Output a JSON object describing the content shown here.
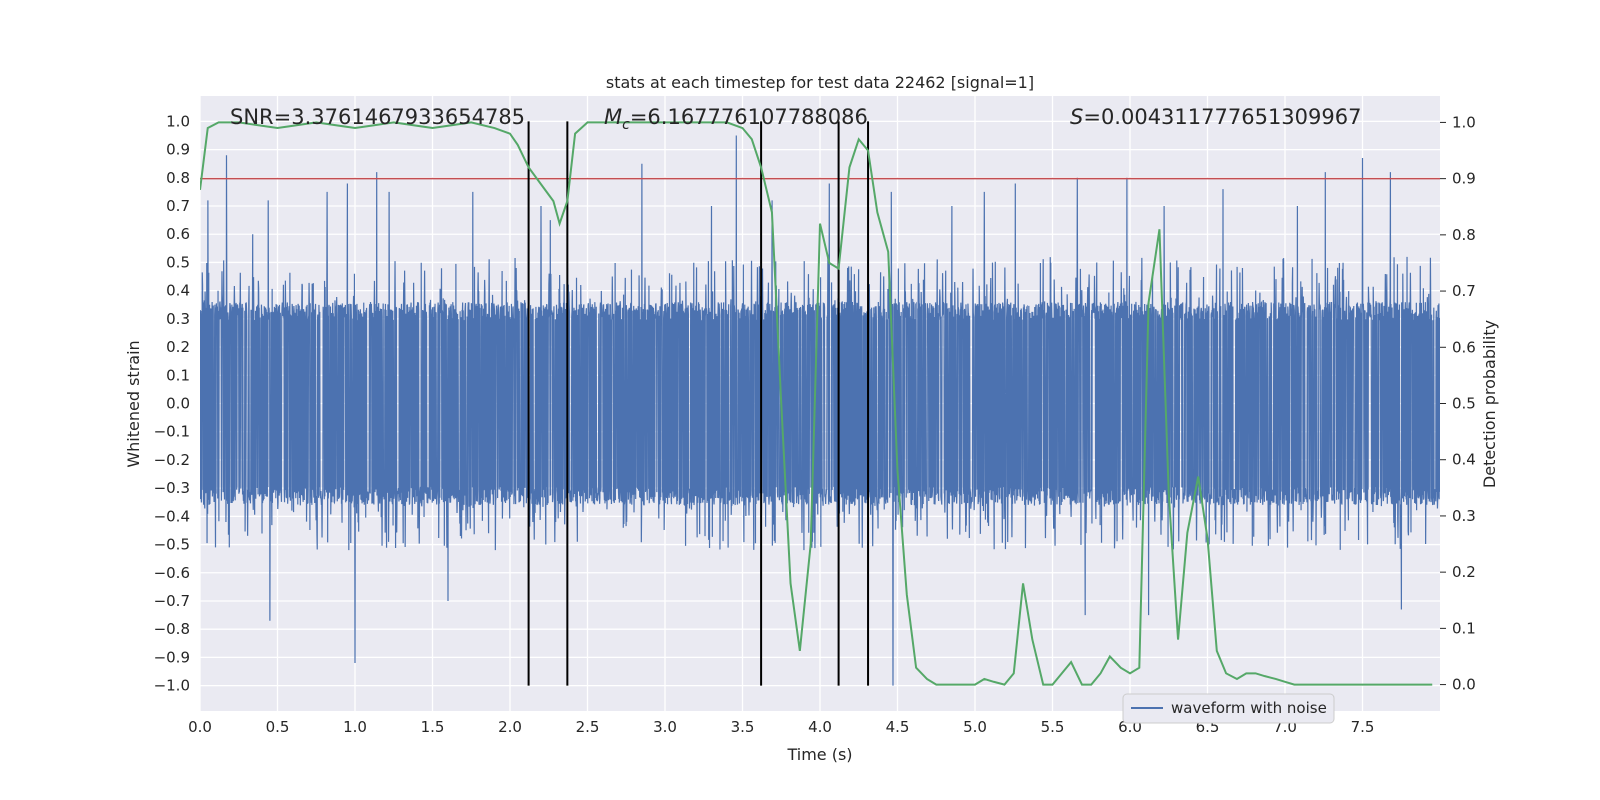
{
  "chart_data": {
    "type": "line",
    "title": "stats at each timestep for test data 22462 [signal=1]",
    "xlabel": "Time (s)",
    "ylabel": "Whitened strain",
    "y2label": "Detection probability",
    "xlim": [
      0.0,
      8.0
    ],
    "ylim": [
      -1.09,
      1.09
    ],
    "y2lim": [
      -0.047,
      1.047
    ],
    "xticks": [
      "0.0",
      "0.5",
      "1.0",
      "1.5",
      "2.0",
      "2.5",
      "3.0",
      "3.5",
      "4.0",
      "4.5",
      "5.0",
      "5.5",
      "6.0",
      "6.5",
      "7.0",
      "7.5"
    ],
    "yticks": [
      "1.0",
      "0.9",
      "0.8",
      "0.7",
      "0.6",
      "0.5",
      "0.4",
      "0.3",
      "0.2",
      "0.1",
      "0.0",
      "−0.1",
      "−0.2",
      "−0.3",
      "−0.4",
      "−0.5",
      "−0.6",
      "−0.7",
      "−0.8",
      "−0.9",
      "−1.0"
    ],
    "y2ticks": [
      "1.0",
      "0.9",
      "0.8",
      "0.7",
      "0.6",
      "0.5",
      "0.4",
      "0.3",
      "0.2",
      "0.1",
      "0.0"
    ],
    "annotations": {
      "snr": "SNR=3.3761467933654785",
      "mc_symbol": "M",
      "mc_sub": "c",
      "mc_value": "=6.167776107788086",
      "s_symbol": "S",
      "s_value": "=0.004311777651309967"
    },
    "legend": {
      "label": "waveform with noise",
      "position": "lower-right"
    },
    "threshold": {
      "axis": "right",
      "value": 0.9,
      "color": "#c44e52"
    },
    "vertical_lines": {
      "x": [
        2.12,
        2.37,
        3.62,
        4.12,
        4.31
      ],
      "from": -1.0,
      "to": 1.0
    },
    "waveform": {
      "name": "waveform with noise",
      "color": "#4c72b0",
      "duration": 8.0,
      "body_amplitude": 0.36,
      "typical_peak": 0.52,
      "spikes": [
        {
          "t": 0.05,
          "v": 0.72
        },
        {
          "t": 0.17,
          "v": 0.88
        },
        {
          "t": 0.34,
          "v": 0.6
        },
        {
          "t": 0.44,
          "v": 0.72
        },
        {
          "t": 0.45,
          "v": -0.77
        },
        {
          "t": 0.82,
          "v": 0.75
        },
        {
          "t": 0.95,
          "v": 0.78
        },
        {
          "t": 1.0,
          "v": -0.92
        },
        {
          "t": 1.14,
          "v": 0.82
        },
        {
          "t": 1.22,
          "v": 0.75
        },
        {
          "t": 1.6,
          "v": -0.7
        },
        {
          "t": 1.76,
          "v": 0.75
        },
        {
          "t": 2.2,
          "v": 0.7
        },
        {
          "t": 2.26,
          "v": 0.65
        },
        {
          "t": 2.85,
          "v": 0.85
        },
        {
          "t": 3.3,
          "v": 0.7
        },
        {
          "t": 3.46,
          "v": 0.95
        },
        {
          "t": 3.69,
          "v": 0.72
        },
        {
          "t": 4.06,
          "v": 0.78
        },
        {
          "t": 4.46,
          "v": 0.75
        },
        {
          "t": 4.47,
          "v": -1.0
        },
        {
          "t": 4.85,
          "v": 0.7
        },
        {
          "t": 5.06,
          "v": 0.75
        },
        {
          "t": 5.26,
          "v": 0.78
        },
        {
          "t": 5.66,
          "v": 0.8
        },
        {
          "t": 5.71,
          "v": -0.75
        },
        {
          "t": 5.98,
          "v": 0.8
        },
        {
          "t": 6.12,
          "v": -0.75
        },
        {
          "t": 6.22,
          "v": 0.7
        },
        {
          "t": 6.6,
          "v": 0.76
        },
        {
          "t": 7.08,
          "v": 0.7
        },
        {
          "t": 7.26,
          "v": 0.82
        },
        {
          "t": 7.5,
          "v": 0.87
        },
        {
          "t": 7.68,
          "v": 0.82
        },
        {
          "t": 7.75,
          "v": -0.73
        }
      ]
    },
    "detection_probability": {
      "name": "detection probability",
      "color": "#55a868",
      "x": [
        0.0,
        0.05,
        0.12,
        0.25,
        0.5,
        0.75,
        1.0,
        1.25,
        1.5,
        1.75,
        1.9,
        2.0,
        2.05,
        2.12,
        2.2,
        2.28,
        2.32,
        2.37,
        2.42,
        2.5,
        2.6,
        2.75,
        3.0,
        3.25,
        3.4,
        3.5,
        3.56,
        3.62,
        3.69,
        3.75,
        3.81,
        3.87,
        3.94,
        4.0,
        4.06,
        4.12,
        4.19,
        4.25,
        4.31,
        4.37,
        4.44,
        4.5,
        4.56,
        4.62,
        4.69,
        4.75,
        4.81,
        4.87,
        4.94,
        5.0,
        5.06,
        5.12,
        5.19,
        5.25,
        5.31,
        5.37,
        5.44,
        5.5,
        5.56,
        5.62,
        5.69,
        5.75,
        5.81,
        5.87,
        5.94,
        6.0,
        6.06,
        6.12,
        6.19,
        6.25,
        6.31,
        6.37,
        6.44,
        6.5,
        6.56,
        6.62,
        6.69,
        6.75,
        6.81,
        6.87,
        6.94,
        7.0,
        7.06,
        7.12,
        7.19,
        7.25,
        7.5,
        7.75,
        7.95
      ],
      "y": [
        0.88,
        0.99,
        1.0,
        1.0,
        0.99,
        1.0,
        0.99,
        1.0,
        0.99,
        1.0,
        0.99,
        0.98,
        0.96,
        0.92,
        0.89,
        0.86,
        0.82,
        0.86,
        0.98,
        1.0,
        1.0,
        1.0,
        1.0,
        1.0,
        1.0,
        0.99,
        0.97,
        0.92,
        0.84,
        0.5,
        0.18,
        0.06,
        0.25,
        0.82,
        0.75,
        0.74,
        0.92,
        0.97,
        0.95,
        0.84,
        0.77,
        0.38,
        0.16,
        0.03,
        0.01,
        0.0,
        0.0,
        0.0,
        0.0,
        0.0,
        0.01,
        0.005,
        0.0,
        0.02,
        0.18,
        0.08,
        0.0,
        0.0,
        0.02,
        0.04,
        0.0,
        0.0,
        0.02,
        0.05,
        0.03,
        0.02,
        0.03,
        0.68,
        0.81,
        0.34,
        0.08,
        0.27,
        0.37,
        0.26,
        0.06,
        0.02,
        0.01,
        0.02,
        0.02,
        0.015,
        0.01,
        0.005,
        0.0,
        0.0,
        0.0,
        0.0,
        0.0,
        0.0,
        0.0
      ]
    }
  }
}
